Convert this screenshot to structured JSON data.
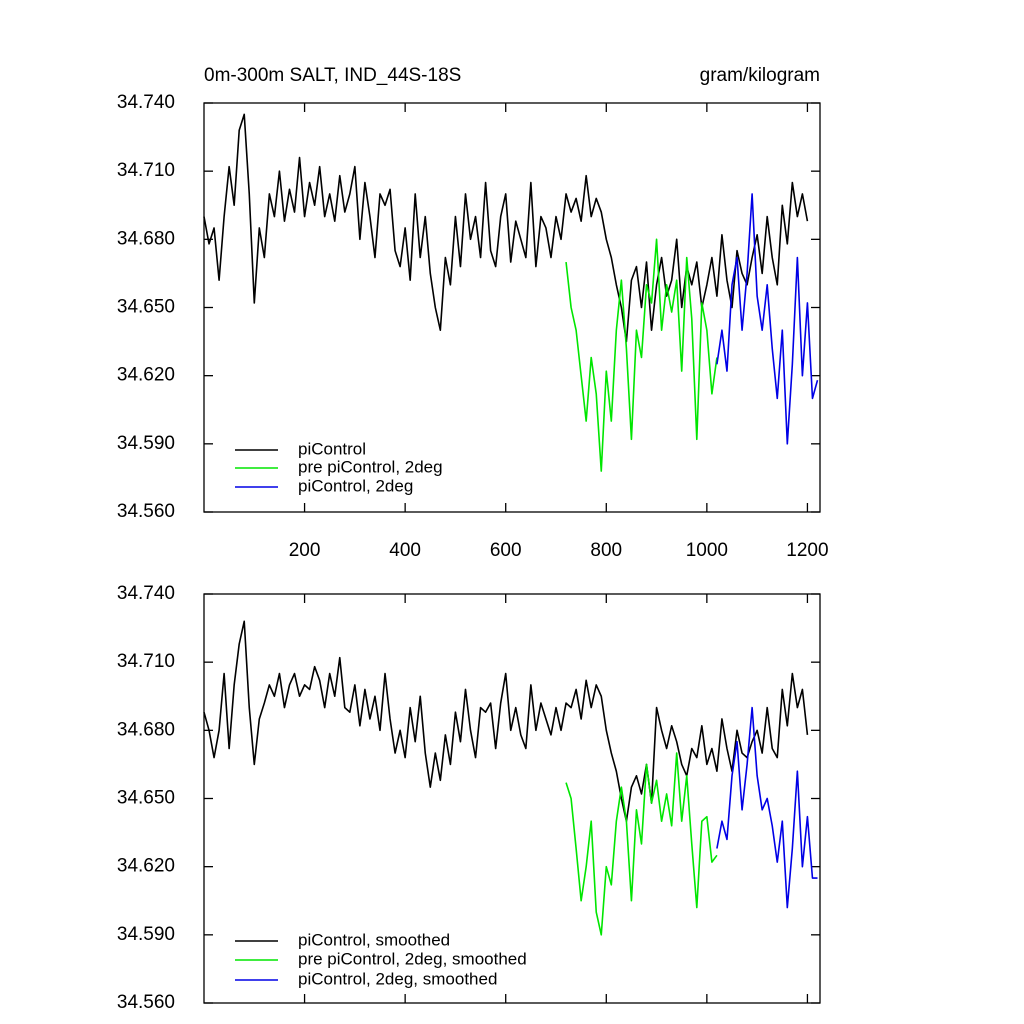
{
  "chart_data": [
    {
      "type": "line",
      "title": "0m-300m SALT, IND_44S-18S",
      "units": "gram/kilogram",
      "xlim": [
        0,
        1225
      ],
      "ylim": [
        34.56,
        34.74
      ],
      "xticks": [
        200,
        400,
        600,
        800,
        1000,
        1200
      ],
      "yticks": [
        {
          "value": 34.56,
          "label": "34.560"
        },
        {
          "value": 34.59,
          "label": "34.590"
        },
        {
          "value": 34.62,
          "label": "34.620"
        },
        {
          "value": 34.65,
          "label": "34.650"
        },
        {
          "value": 34.68,
          "label": "34.680"
        },
        {
          "value": 34.71,
          "label": "34.710"
        },
        {
          "value": 34.74,
          "label": "34.740"
        }
      ],
      "legend": "lower left",
      "series": [
        {
          "name": "piControl",
          "color": "#000000",
          "x": [
            0,
            10,
            20,
            30,
            40,
            50,
            60,
            70,
            80,
            90,
            100,
            110,
            120,
            130,
            140,
            150,
            160,
            170,
            180,
            190,
            200,
            210,
            220,
            230,
            240,
            250,
            260,
            270,
            280,
            290,
            300,
            310,
            320,
            330,
            340,
            350,
            360,
            370,
            380,
            390,
            400,
            410,
            420,
            430,
            440,
            450,
            460,
            470,
            480,
            490,
            500,
            510,
            520,
            530,
            540,
            550,
            560,
            570,
            580,
            590,
            600,
            610,
            620,
            630,
            640,
            650,
            660,
            670,
            680,
            690,
            700,
            710,
            720,
            730,
            740,
            750,
            760,
            770,
            780,
            790,
            800,
            810,
            820,
            830,
            840,
            850,
            860,
            870,
            880,
            890,
            900,
            910,
            920,
            930,
            940,
            950,
            960,
            970,
            980,
            990,
            1000,
            1010,
            1020,
            1030,
            1040,
            1050,
            1060,
            1070,
            1080,
            1090,
            1100,
            1110,
            1120,
            1130,
            1140,
            1150,
            1160,
            1170,
            1180,
            1190,
            1200
          ],
          "values": [
            34.69,
            34.678,
            34.685,
            34.662,
            34.69,
            34.712,
            34.695,
            34.728,
            34.735,
            34.7,
            34.652,
            34.685,
            34.672,
            34.7,
            34.69,
            34.71,
            34.688,
            34.702,
            34.692,
            34.716,
            34.69,
            34.705,
            34.695,
            34.712,
            34.69,
            34.7,
            34.688,
            34.708,
            34.692,
            34.7,
            34.712,
            34.68,
            34.705,
            34.69,
            34.672,
            34.7,
            34.695,
            34.702,
            34.675,
            34.668,
            34.685,
            34.662,
            34.7,
            34.672,
            34.69,
            34.665,
            34.65,
            34.64,
            34.672,
            34.66,
            34.69,
            34.668,
            34.7,
            34.68,
            34.69,
            34.672,
            34.705,
            34.675,
            34.668,
            34.69,
            34.7,
            34.67,
            34.688,
            34.68,
            34.672,
            34.705,
            34.668,
            34.69,
            34.685,
            34.672,
            34.69,
            34.68,
            34.7,
            34.692,
            34.698,
            34.688,
            34.708,
            34.69,
            34.698,
            34.692,
            34.68,
            34.672,
            34.66,
            34.65,
            34.635,
            34.662,
            34.668,
            34.65,
            34.67,
            34.64,
            34.66,
            34.672,
            34.655,
            34.662,
            34.68,
            34.65,
            34.668,
            34.66,
            34.67,
            34.65,
            34.66,
            34.672,
            34.655,
            34.682,
            34.662,
            34.65,
            34.675,
            34.665,
            34.66,
            34.672,
            34.682,
            34.665,
            34.69,
            34.672,
            34.66,
            34.695,
            34.678,
            34.705,
            34.69,
            34.7,
            34.688
          ]
        },
        {
          "name": "pre piControl, 2deg",
          "color": "#00e600",
          "x": [
            720,
            730,
            740,
            750,
            760,
            770,
            780,
            790,
            800,
            810,
            820,
            830,
            840,
            850,
            860,
            870,
            880,
            890,
            900,
            910,
            920,
            930,
            940,
            950,
            960,
            970,
            980,
            990,
            1000,
            1010,
            1020
          ],
          "values": [
            34.67,
            34.65,
            34.64,
            34.62,
            34.6,
            34.628,
            34.612,
            34.578,
            34.622,
            34.6,
            34.64,
            34.662,
            34.632,
            34.592,
            34.64,
            34.628,
            34.66,
            34.652,
            34.68,
            34.64,
            34.66,
            34.648,
            34.662,
            34.622,
            34.672,
            34.645,
            34.592,
            34.652,
            34.64,
            34.612,
            34.628
          ]
        },
        {
          "name": "piControl, 2deg",
          "color": "#0000e6",
          "x": [
            1020,
            1030,
            1040,
            1050,
            1060,
            1070,
            1080,
            1090,
            1100,
            1110,
            1120,
            1130,
            1140,
            1150,
            1160,
            1170,
            1180,
            1190,
            1200,
            1210,
            1220
          ],
          "values": [
            34.625,
            34.64,
            34.622,
            34.66,
            34.672,
            34.64,
            34.665,
            34.7,
            34.655,
            34.64,
            34.66,
            34.632,
            34.61,
            34.64,
            34.59,
            34.625,
            34.672,
            34.62,
            34.652,
            34.61,
            34.618
          ]
        }
      ]
    },
    {
      "type": "line",
      "xlim": [
        0,
        1225
      ],
      "ylim": [
        34.56,
        34.74
      ],
      "yticks": [
        {
          "value": 34.56,
          "label": "34.560"
        },
        {
          "value": 34.59,
          "label": "34.590"
        },
        {
          "value": 34.62,
          "label": "34.620"
        },
        {
          "value": 34.65,
          "label": "34.650"
        },
        {
          "value": 34.68,
          "label": "34.680"
        },
        {
          "value": 34.71,
          "label": "34.710"
        },
        {
          "value": 34.74,
          "label": "34.740"
        }
      ],
      "legend": "lower left",
      "series": [
        {
          "name": "piControl, smoothed",
          "color": "#000000",
          "x": [
            0,
            10,
            20,
            30,
            40,
            50,
            60,
            70,
            80,
            90,
            100,
            110,
            120,
            130,
            140,
            150,
            160,
            170,
            180,
            190,
            200,
            210,
            220,
            230,
            240,
            250,
            260,
            270,
            280,
            290,
            300,
            310,
            320,
            330,
            340,
            350,
            360,
            370,
            380,
            390,
            400,
            410,
            420,
            430,
            440,
            450,
            460,
            470,
            480,
            490,
            500,
            510,
            520,
            530,
            540,
            550,
            560,
            570,
            580,
            590,
            600,
            610,
            620,
            630,
            640,
            650,
            660,
            670,
            680,
            690,
            700,
            710,
            720,
            730,
            740,
            750,
            760,
            770,
            780,
            790,
            800,
            810,
            820,
            830,
            840,
            850,
            860,
            870,
            880,
            890,
            900,
            910,
            920,
            930,
            940,
            950,
            960,
            970,
            980,
            990,
            1000,
            1010,
            1020,
            1030,
            1040,
            1050,
            1060,
            1070,
            1080,
            1090,
            1100,
            1110,
            1120,
            1130,
            1140,
            1150,
            1160,
            1170,
            1180,
            1190,
            1200
          ],
          "values": [
            34.688,
            34.68,
            34.668,
            34.68,
            34.705,
            34.672,
            34.7,
            34.718,
            34.728,
            34.69,
            34.665,
            34.685,
            34.692,
            34.7,
            34.695,
            34.705,
            34.69,
            34.7,
            34.705,
            34.695,
            34.7,
            34.698,
            34.708,
            34.702,
            34.69,
            34.705,
            34.695,
            34.712,
            34.69,
            34.688,
            34.7,
            34.682,
            34.698,
            34.685,
            34.695,
            34.68,
            34.705,
            34.685,
            34.67,
            34.68,
            34.668,
            34.69,
            34.675,
            34.695,
            34.67,
            34.655,
            34.67,
            34.658,
            34.678,
            34.665,
            34.688,
            34.675,
            34.698,
            34.68,
            34.668,
            34.69,
            34.688,
            34.692,
            34.672,
            34.692,
            34.705,
            34.68,
            34.69,
            34.678,
            34.672,
            34.7,
            34.68,
            34.692,
            34.685,
            34.678,
            34.69,
            34.68,
            34.692,
            34.69,
            34.698,
            34.685,
            34.702,
            34.69,
            34.7,
            34.695,
            34.68,
            34.67,
            34.662,
            34.65,
            34.64,
            34.655,
            34.66,
            34.652,
            34.665,
            34.648,
            34.69,
            34.68,
            34.672,
            34.682,
            34.675,
            34.665,
            34.66,
            34.672,
            34.668,
            34.682,
            34.665,
            34.672,
            34.662,
            34.685,
            34.672,
            34.662,
            34.68,
            34.67,
            34.668,
            34.675,
            34.68,
            34.67,
            34.69,
            34.672,
            34.668,
            34.698,
            34.682,
            34.705,
            34.69,
            34.698,
            34.678
          ]
        },
        {
          "name": "pre piControl, 2deg, smoothed",
          "color": "#00e600",
          "x": [
            720,
            730,
            740,
            750,
            760,
            770,
            780,
            790,
            800,
            810,
            820,
            830,
            840,
            850,
            860,
            870,
            880,
            890,
            900,
            910,
            920,
            930,
            940,
            950,
            960,
            970,
            980,
            990,
            1000,
            1010,
            1020
          ],
          "values": [
            34.657,
            34.65,
            34.628,
            34.605,
            34.62,
            34.64,
            34.6,
            34.59,
            34.62,
            34.612,
            34.64,
            34.655,
            34.64,
            34.605,
            34.645,
            34.63,
            34.665,
            34.648,
            34.658,
            34.64,
            34.652,
            34.638,
            34.67,
            34.64,
            34.66,
            34.63,
            34.602,
            34.64,
            34.642,
            34.622,
            34.625
          ]
        },
        {
          "name": "piControl, 2deg, smoothed",
          "color": "#0000e6",
          "x": [
            1020,
            1030,
            1040,
            1050,
            1060,
            1070,
            1080,
            1090,
            1100,
            1110,
            1120,
            1130,
            1140,
            1150,
            1160,
            1170,
            1180,
            1190,
            1200,
            1210,
            1220
          ],
          "values": [
            34.628,
            34.64,
            34.632,
            34.66,
            34.675,
            34.645,
            34.665,
            34.69,
            34.66,
            34.645,
            34.65,
            34.638,
            34.622,
            34.64,
            34.602,
            34.628,
            34.662,
            34.62,
            34.642,
            34.615,
            34.615
          ]
        }
      ]
    }
  ]
}
